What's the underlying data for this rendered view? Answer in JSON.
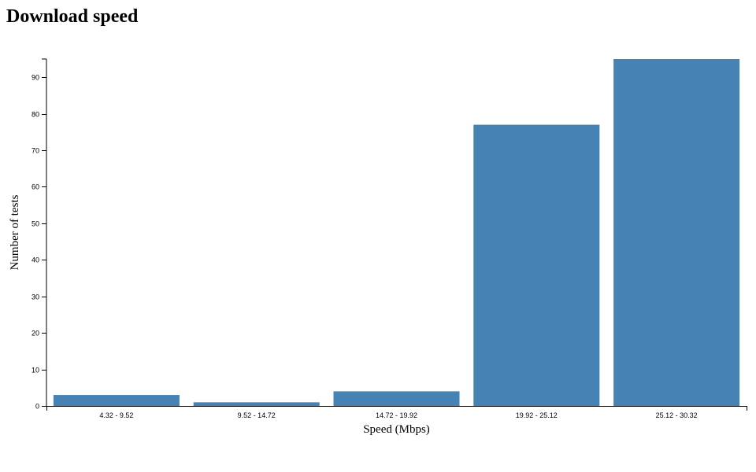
{
  "page": {
    "title": "Download speed"
  },
  "chart_data": {
    "type": "bar",
    "title": "Download speed",
    "xlabel": "Speed (Mbps)",
    "ylabel": "Number of tests",
    "categories": [
      "4.32 - 9.52",
      "9.52 - 14.72",
      "14.72 - 19.92",
      "19.92 - 25.12",
      "25.12 - 30.32"
    ],
    "values": [
      3,
      1,
      4,
      77,
      95
    ],
    "ylim": [
      0,
      95
    ],
    "yticks": [
      0,
      10,
      20,
      30,
      40,
      50,
      60,
      70,
      80,
      90
    ],
    "bar_color": "#4682b4",
    "grid": false,
    "legend": "none"
  }
}
